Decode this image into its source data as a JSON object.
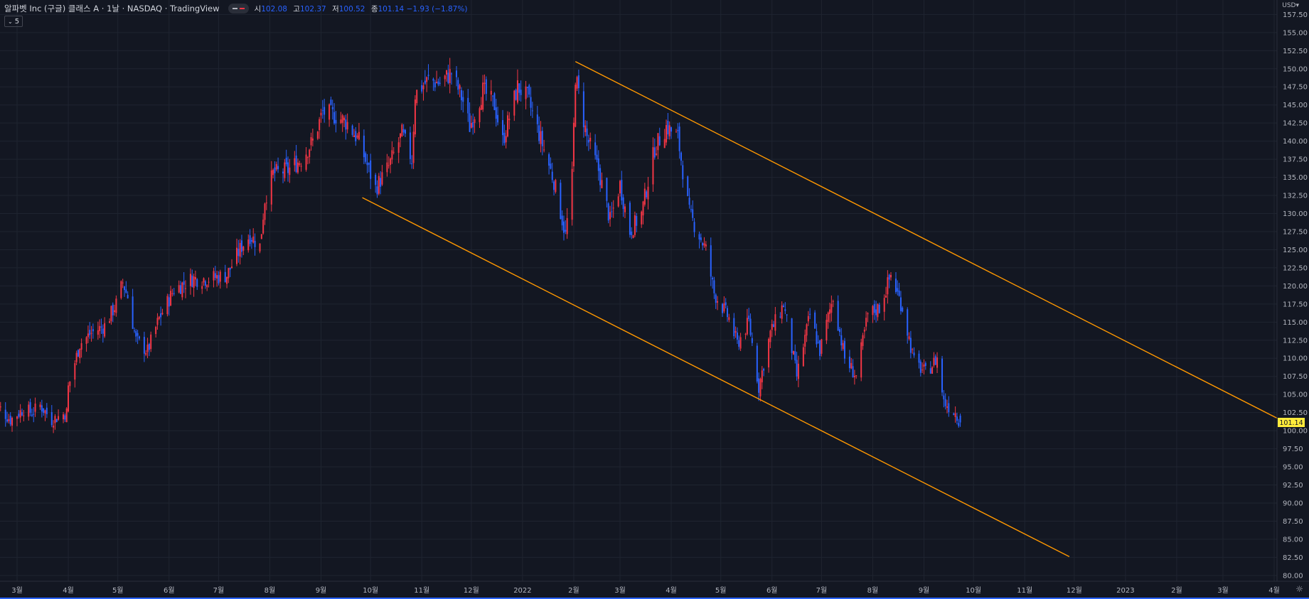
{
  "legend": {
    "symbol": "알파벳 Inc (구글) 클래스 A · 1날 · NASDAQ · TradingView",
    "ohlc": {
      "o_label": "시",
      "o": "102.08",
      "h_label": "고",
      "h": "102.37",
      "l_label": "저",
      "l": "100.52",
      "c_label": "종",
      "c": "101.14 −1.93 (−1.87%)"
    },
    "indicator_label": "5"
  },
  "axis": {
    "currency": "USD"
  },
  "colors": {
    "up": "#f23645",
    "down": "#2962ff",
    "line": "#ff9800",
    "price_badge": "#ffeb3b",
    "bg": "#131722",
    "grid": "#1f2430"
  },
  "chart_data": {
    "type": "candlestick",
    "ylim": [
      79.2,
      159.5
    ],
    "yticks": [
      80,
      82.5,
      85,
      87.5,
      90,
      92.5,
      95,
      97.5,
      100,
      102.5,
      105,
      107.5,
      110,
      112.5,
      115,
      117.5,
      120,
      122.5,
      125,
      127.5,
      130,
      132.5,
      135,
      137.5,
      140,
      142.5,
      145,
      147.5,
      150,
      152.5,
      155,
      157.5
    ],
    "xticks": [
      {
        "label": "3월",
        "date": "2021-03-01"
      },
      {
        "label": "4월",
        "date": "2021-04-01"
      },
      {
        "label": "5월",
        "date": "2021-05-01"
      },
      {
        "label": "6월",
        "date": "2021-06-01"
      },
      {
        "label": "7월",
        "date": "2021-07-01"
      },
      {
        "label": "8월",
        "date": "2021-08-01"
      },
      {
        "label": "9월",
        "date": "2021-09-01"
      },
      {
        "label": "10월",
        "date": "2021-10-01"
      },
      {
        "label": "11월",
        "date": "2021-11-01"
      },
      {
        "label": "12월",
        "date": "2021-12-01"
      },
      {
        "label": "2022",
        "date": "2022-01-01"
      },
      {
        "label": "2월",
        "date": "2022-02-01"
      },
      {
        "label": "3월",
        "date": "2022-03-01"
      },
      {
        "label": "4월",
        "date": "2022-04-01"
      },
      {
        "label": "5월",
        "date": "2022-05-01"
      },
      {
        "label": "6월",
        "date": "2022-06-01"
      },
      {
        "label": "7월",
        "date": "2022-07-01"
      },
      {
        "label": "8월",
        "date": "2022-08-01"
      },
      {
        "label": "9월",
        "date": "2022-09-01"
      },
      {
        "label": "10월",
        "date": "2022-10-01"
      },
      {
        "label": "11월",
        "date": "2022-11-01"
      },
      {
        "label": "12월",
        "date": "2022-12-01"
      },
      {
        "label": "2023",
        "date": "2023-01-01"
      },
      {
        "label": "2월",
        "date": "2023-02-01"
      },
      {
        "label": "3월",
        "date": "2023-03-01"
      },
      {
        "label": "4월",
        "date": "2023-04-01"
      }
    ],
    "close_path": [
      [
        "2021-02-15",
        104.0
      ],
      [
        "2021-02-25",
        101.5
      ],
      [
        "2021-03-05",
        103.0
      ],
      [
        "2021-03-10",
        102.5
      ],
      [
        "2021-03-15",
        103.5
      ],
      [
        "2021-03-22",
        101.5
      ],
      [
        "2021-03-31",
        102.5
      ],
      [
        "2021-04-01",
        106.0
      ],
      [
        "2021-04-08",
        112.0
      ],
      [
        "2021-04-15",
        113.5
      ],
      [
        "2021-04-23",
        114.5
      ],
      [
        "2021-04-30",
        117.5
      ],
      [
        "2021-05-04",
        120.5
      ],
      [
        "2021-05-07",
        118.5
      ],
      [
        "2021-05-12",
        112.5
      ],
      [
        "2021-05-19",
        111.0
      ],
      [
        "2021-05-26",
        115.5
      ],
      [
        "2021-06-04",
        119.5
      ],
      [
        "2021-06-15",
        121.0
      ],
      [
        "2021-06-25",
        121.0
      ],
      [
        "2021-07-06",
        121.5
      ],
      [
        "2021-07-15",
        125.5
      ],
      [
        "2021-07-20",
        127.0
      ],
      [
        "2021-07-26",
        125.5
      ],
      [
        "2021-07-29",
        132.0
      ],
      [
        "2021-08-03",
        135.5
      ],
      [
        "2021-08-12",
        136.0
      ],
      [
        "2021-08-20",
        137.5
      ],
      [
        "2021-08-27",
        140.0
      ],
      [
        "2021-09-02",
        144.0
      ],
      [
        "2021-09-10",
        143.5
      ],
      [
        "2021-09-17",
        142.5
      ],
      [
        "2021-09-24",
        140.0
      ],
      [
        "2021-09-30",
        136.0
      ],
      [
        "2021-10-04",
        133.5
      ],
      [
        "2021-10-12",
        136.5
      ],
      [
        "2021-10-20",
        141.0
      ],
      [
        "2021-10-26",
        137.5
      ],
      [
        "2021-10-28",
        146.5
      ],
      [
        "2021-11-05",
        148.5
      ],
      [
        "2021-11-12",
        148.0
      ],
      [
        "2021-11-19",
        149.5
      ],
      [
        "2021-11-26",
        145.5
      ],
      [
        "2021-11-30",
        142.0
      ],
      [
        "2021-12-08",
        147.0
      ],
      [
        "2021-12-15",
        145.0
      ],
      [
        "2021-12-20",
        140.0
      ],
      [
        "2021-12-29",
        147.5
      ],
      [
        "2022-01-04",
        146.0
      ],
      [
        "2022-01-11",
        141.0
      ],
      [
        "2022-01-20",
        134.5
      ],
      [
        "2022-01-27",
        127.0
      ],
      [
        "2022-01-31",
        135.0
      ],
      [
        "2022-02-02",
        149.0
      ],
      [
        "2022-02-09",
        140.5
      ],
      [
        "2022-02-16",
        136.0
      ],
      [
        "2022-02-23",
        129.0
      ],
      [
        "2022-03-01",
        134.0
      ],
      [
        "2022-03-07",
        127.5
      ],
      [
        "2022-03-14",
        130.0
      ],
      [
        "2022-03-22",
        139.0
      ],
      [
        "2022-03-29",
        142.0
      ],
      [
        "2022-04-05",
        140.5
      ],
      [
        "2022-04-12",
        130.0
      ],
      [
        "2022-04-22",
        125.0
      ],
      [
        "2022-04-27",
        119.0
      ],
      [
        "2022-05-06",
        115.5
      ],
      [
        "2022-05-11",
        112.0
      ],
      [
        "2022-05-18",
        115.0
      ],
      [
        "2022-05-24",
        106.0
      ],
      [
        "2022-05-31",
        113.5
      ],
      [
        "2022-06-08",
        117.5
      ],
      [
        "2022-06-16",
        107.5
      ],
      [
        "2022-06-24",
        116.0
      ],
      [
        "2022-06-30",
        111.0
      ],
      [
        "2022-07-08",
        118.5
      ],
      [
        "2022-07-15",
        110.0
      ],
      [
        "2022-07-22",
        107.5
      ],
      [
        "2022-07-29",
        116.0
      ],
      [
        "2022-08-05",
        117.0
      ],
      [
        "2022-08-12",
        121.5
      ],
      [
        "2022-08-19",
        117.0
      ],
      [
        "2022-08-26",
        109.5
      ],
      [
        "2022-09-02",
        108.0
      ],
      [
        "2022-09-09",
        110.0
      ],
      [
        "2022-09-13",
        104.0
      ],
      [
        "2022-09-20",
        102.5
      ],
      [
        "2022-09-23",
        101.14
      ]
    ],
    "trendlines": [
      {
        "from": [
          "2022-02-02",
          151.0
        ],
        "to": [
          "2023-04-03",
          101.7
        ]
      },
      {
        "from": [
          "2021-09-26",
          132.2
        ],
        "to": [
          "2022-11-28",
          82.6
        ]
      }
    ],
    "last_price": 101.14,
    "last_price_label": "101.14"
  }
}
